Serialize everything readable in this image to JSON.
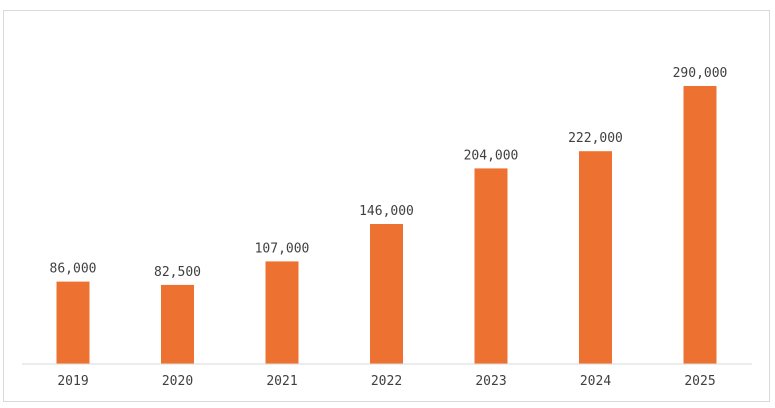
{
  "chart_data": {
    "type": "bar",
    "categories": [
      "2019",
      "2020",
      "2021",
      "2022",
      "2023",
      "2024",
      "2025"
    ],
    "values": [
      86000,
      82500,
      107000,
      146000,
      204000,
      222000,
      290000
    ],
    "data_labels": [
      "86,000",
      "82,500",
      "107,000",
      "146,000",
      "204,000",
      "222,000",
      "290,000"
    ],
    "title": "",
    "xlabel": "",
    "ylabel": "",
    "ylim": [
      0,
      300000
    ],
    "grid": false,
    "legend": "none",
    "bar_color": "#ED7232"
  }
}
